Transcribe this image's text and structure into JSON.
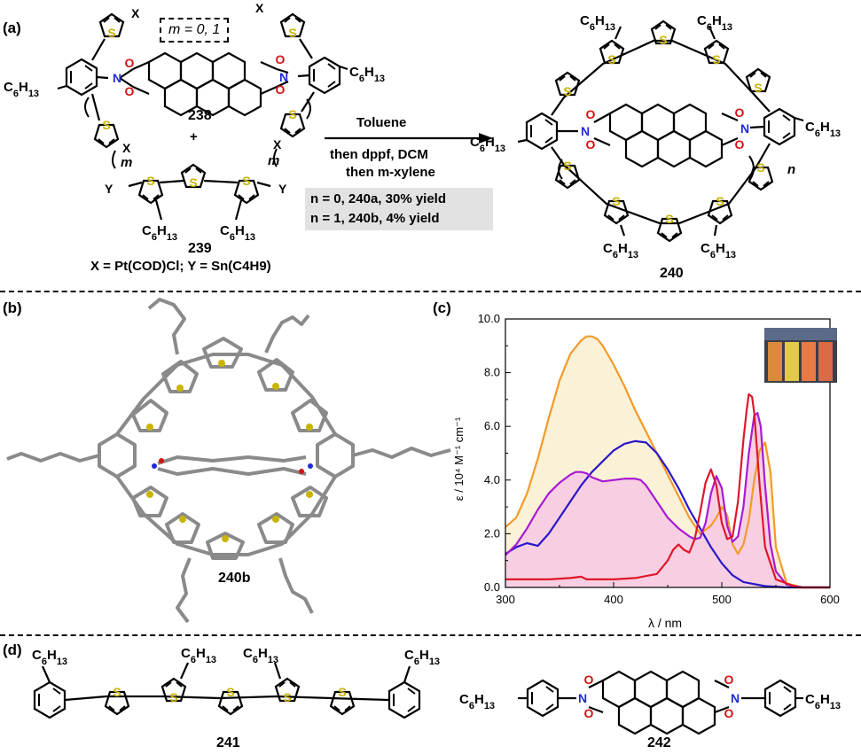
{
  "panels": {
    "a": {
      "label": "(a)",
      "m_box": "m = 0, 1",
      "c6": "C6H13",
      "x_sym": "X",
      "y_sym": "Y",
      "m_sym": "m",
      "n_sym": "n",
      "s_sym": "S",
      "n_atom": "N",
      "o_atom": "O",
      "cmpd_238": "238",
      "plus": "+",
      "cmpd_239": "239",
      "cmpd_240": "240",
      "definitions": "X = Pt(COD)Cl; Y = Sn(C4H9)",
      "arrow_top": "Toluene",
      "arrow_bottom_1": "then dppf, DCM",
      "arrow_bottom_2": "then m-xylene",
      "yield_1": "n = 0, 240a, 30% yield",
      "yield_2": "n = 1, 240b, 4% yield"
    },
    "b": {
      "label": "(b)",
      "cmpd": "240b"
    },
    "c": {
      "label": "(c)",
      "ylabel": "ε / 10⁴ M⁻¹ cm⁻¹",
      "xlabel": "λ / nm"
    },
    "d": {
      "label": "(d)",
      "cmpd_241": "241",
      "cmpd_242": "242"
    }
  },
  "colors": {
    "sulfur": "#c9b400",
    "nitrogen": "#1f2bd6",
    "oxygen": "#d21414",
    "orange": "#f39a2a",
    "blue": "#2a18c8",
    "purple": "#a81ad6",
    "red": "#e0162a",
    "fill_yellow": "#fbf1d6",
    "fill_pink": "#f8cfe2"
  },
  "chart_data": {
    "type": "line",
    "xlabel": "λ / nm",
    "ylabel": "ε / 10⁴ M⁻¹ cm⁻¹",
    "xlim": [
      300,
      600
    ],
    "ylim": [
      0,
      10
    ],
    "xticks": [
      "300",
      "400",
      "500",
      "600"
    ],
    "yticks": [
      "0.0",
      "2.0",
      "4.0",
      "6.0",
      "8.0",
      "10.0"
    ],
    "series": [
      {
        "color": "#f39a2a",
        "fill": "#fbf1d6",
        "x": [
          300,
          310,
          320,
          330,
          340,
          350,
          360,
          370,
          375,
          380,
          385,
          390,
          400,
          410,
          420,
          430,
          440,
          450,
          460,
          470,
          480,
          490,
          495,
          500,
          505,
          510,
          515,
          520,
          525,
          530,
          535,
          540,
          545,
          550,
          560,
          575,
          600
        ],
        "y": [
          2.25,
          2.6,
          3.5,
          4.8,
          6.3,
          7.7,
          8.7,
          9.2,
          9.35,
          9.35,
          9.25,
          9.0,
          8.3,
          7.5,
          6.6,
          5.8,
          5.0,
          4.2,
          3.4,
          2.6,
          2.0,
          2.3,
          2.6,
          3.0,
          2.7,
          1.6,
          1.25,
          1.6,
          2.5,
          4.0,
          5.1,
          5.4,
          4.3,
          1.5,
          0.15,
          0.0,
          0.0
        ]
      },
      {
        "color": "#2a18c8",
        "x": [
          300,
          310,
          320,
          330,
          340,
          350,
          360,
          370,
          380,
          390,
          400,
          410,
          420,
          430,
          440,
          450,
          460,
          470,
          480,
          490,
          500,
          510,
          520,
          540,
          560,
          600
        ],
        "y": [
          1.25,
          1.5,
          1.65,
          1.55,
          2.0,
          2.6,
          3.2,
          3.8,
          4.3,
          4.7,
          5.1,
          5.35,
          5.45,
          5.4,
          5.0,
          4.4,
          3.7,
          2.9,
          2.2,
          1.5,
          0.9,
          0.45,
          0.2,
          0.05,
          0.0,
          0.0
        ]
      },
      {
        "color": "#a81ad6",
        "fill": "#f8cfe2",
        "x": [
          300,
          310,
          320,
          330,
          340,
          350,
          360,
          365,
          370,
          375,
          380,
          390,
          400,
          410,
          420,
          425,
          430,
          440,
          450,
          460,
          470,
          475,
          480,
          485,
          490,
          495,
          500,
          505,
          510,
          515,
          520,
          525,
          530,
          533,
          536,
          540,
          545,
          550,
          560,
          575,
          600
        ],
        "y": [
          1.2,
          1.6,
          2.2,
          2.9,
          3.5,
          3.9,
          4.2,
          4.3,
          4.3,
          4.25,
          4.1,
          3.95,
          4.0,
          4.05,
          4.05,
          4.0,
          3.8,
          3.2,
          2.6,
          2.2,
          1.9,
          1.8,
          1.85,
          2.4,
          3.5,
          4.15,
          3.7,
          2.3,
          1.7,
          1.9,
          3.0,
          5.0,
          6.4,
          6.5,
          6.0,
          3.8,
          1.6,
          0.6,
          0.1,
          0.0,
          0.0
        ]
      },
      {
        "color": "#e0162a",
        "x": [
          300,
          320,
          340,
          360,
          370,
          375,
          380,
          400,
          420,
          440,
          450,
          455,
          460,
          465,
          470,
          475,
          480,
          485,
          490,
          495,
          500,
          505,
          510,
          515,
          520,
          523,
          525,
          528,
          530,
          535,
          540,
          550,
          570,
          600
        ],
        "y": [
          0.3,
          0.3,
          0.3,
          0.35,
          0.4,
          0.3,
          0.3,
          0.3,
          0.35,
          0.5,
          1.0,
          1.4,
          1.6,
          1.4,
          1.3,
          1.8,
          2.8,
          3.9,
          4.4,
          3.8,
          2.4,
          1.8,
          1.9,
          3.2,
          5.5,
          6.6,
          7.2,
          7.1,
          6.5,
          3.8,
          1.5,
          0.3,
          0.0,
          0.0
        ]
      }
    ]
  }
}
